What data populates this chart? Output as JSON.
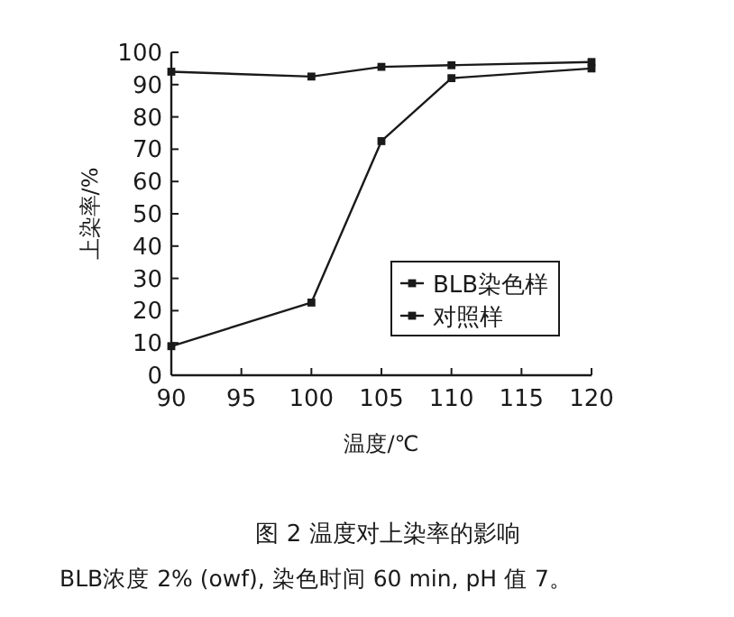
{
  "chart_data": {
    "type": "line",
    "title": "图 2  温度对上染率的影响",
    "xlabel": "温度/℃",
    "ylabel": "上染率/%",
    "x": [
      90,
      100,
      105,
      110,
      120
    ],
    "series": [
      {
        "name": "BLB染色样",
        "color": "#1a1a1a",
        "values": [
          94,
          92.5,
          95.5,
          96,
          97
        ]
      },
      {
        "name": "对照样",
        "color": "#1a1a1a",
        "values": [
          9,
          22.5,
          72.5,
          92,
          95
        ]
      }
    ],
    "xlim": [
      90,
      120
    ],
    "xticks": [
      90,
      95,
      100,
      105,
      110,
      115,
      120
    ],
    "ylim": [
      0,
      100
    ],
    "yticks": [
      0,
      10,
      20,
      30,
      40,
      50,
      60,
      70,
      80,
      90,
      100
    ],
    "legend": "bottom right",
    "marker": "square",
    "line_style": "solid",
    "grid": false,
    "annotations": [
      "BLB浓度 2% (owf), 染色时间 60 min, pH 值 7。"
    ]
  }
}
